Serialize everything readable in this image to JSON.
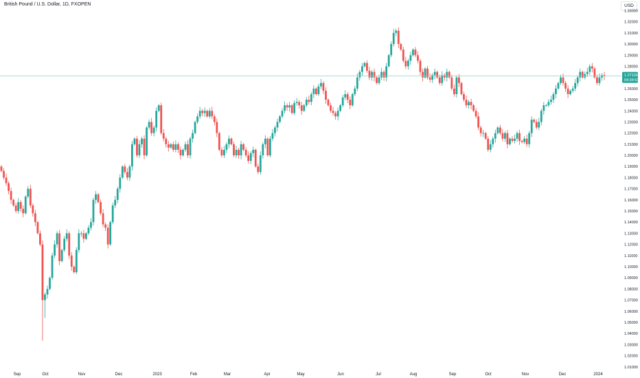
{
  "header": {
    "title": "British Pound / U.S. Dollar, 1D, FXOPEN",
    "currency": "USD"
  },
  "price_tag": {
    "last_price": "1.27126",
    "countdown": "04:34:53"
  },
  "colors": {
    "up": "#26a69a",
    "down": "#ef5350",
    "last_price_line": "#7fd3c9",
    "axis_text": "#131722"
  },
  "chart_data": {
    "type": "candlestick",
    "title": "British Pound / U.S. Dollar, 1D, FXOPEN",
    "ylim": [
      1.0095,
      1.3395
    ],
    "y_ticks": [
      "1.33000",
      "1.32000",
      "1.31000",
      "1.30000",
      "1.29000",
      "1.28000",
      "1.27000",
      "1.26000",
      "1.25000",
      "1.24000",
      "1.23000",
      "1.22000",
      "1.21000",
      "1.20000",
      "1.19000",
      "1.18000",
      "1.17000",
      "1.16000",
      "1.15000",
      "1.14000",
      "1.13000",
      "1.12000",
      "1.11000",
      "1.10000",
      "1.09000",
      "1.08000",
      "1.07000",
      "1.06000",
      "1.05000",
      "1.04000",
      "1.03000",
      "1.02000",
      "1.01000"
    ],
    "x_ticks": [
      "Sep",
      "Oct",
      "Nov",
      "Dec",
      "2023",
      "Feb",
      "Mar",
      "Apr",
      "May",
      "Jun",
      "Jul",
      "Aug",
      "Sep",
      "Oct",
      "Nov",
      "Dec",
      "2024"
    ],
    "grid": false,
    "last_price": 1.27126,
    "closes": [
      1.186,
      1.18,
      1.175,
      1.168,
      1.16,
      1.155,
      1.15,
      1.158,
      1.152,
      1.148,
      1.163,
      1.17,
      1.155,
      1.148,
      1.14,
      1.13,
      1.12,
      1.07,
      1.075,
      1.08,
      1.09,
      1.11,
      1.12,
      1.13,
      1.105,
      1.115,
      1.125,
      1.13,
      1.11,
      1.1,
      1.095,
      1.115,
      1.13,
      1.13,
      1.125,
      1.13,
      1.135,
      1.14,
      1.16,
      1.165,
      1.158,
      1.148,
      1.138,
      1.135,
      1.12,
      1.14,
      1.155,
      1.16,
      1.17,
      1.18,
      1.19,
      1.185,
      1.18,
      1.19,
      1.21,
      1.215,
      1.2,
      1.21,
      1.215,
      1.2,
      1.225,
      1.23,
      1.22,
      1.225,
      1.24,
      1.245,
      1.22,
      1.215,
      1.21,
      1.207,
      1.21,
      1.205,
      1.21,
      1.205,
      1.2,
      1.205,
      1.21,
      1.2,
      1.215,
      1.22,
      1.23,
      1.235,
      1.24,
      1.238,
      1.24,
      1.235,
      1.24,
      1.235,
      1.23,
      1.22,
      1.205,
      1.2,
      1.205,
      1.21,
      1.215,
      1.21,
      1.2,
      1.205,
      1.2,
      1.21,
      1.205,
      1.2,
      1.195,
      1.202,
      1.205,
      1.19,
      1.185,
      1.2,
      1.21,
      1.215,
      1.2,
      1.215,
      1.22,
      1.225,
      1.23,
      1.235,
      1.24,
      1.245,
      1.243,
      1.245,
      1.238,
      1.247,
      1.248,
      1.245,
      1.24,
      1.245,
      1.25,
      1.248,
      1.255,
      1.26,
      1.255,
      1.262,
      1.265,
      1.258,
      1.25,
      1.245,
      1.24,
      1.238,
      1.235,
      1.24,
      1.245,
      1.252,
      1.255,
      1.25,
      1.245,
      1.255,
      1.26,
      1.27,
      1.275,
      1.28,
      1.283,
      1.276,
      1.27,
      1.275,
      1.27,
      1.265,
      1.27,
      1.275,
      1.27,
      1.28,
      1.29,
      1.3,
      1.31,
      1.312,
      1.3,
      1.295,
      1.285,
      1.28,
      1.285,
      1.29,
      1.295,
      1.29,
      1.285,
      1.275,
      1.27,
      1.278,
      1.27,
      1.268,
      1.272,
      1.275,
      1.27,
      1.265,
      1.272,
      1.27,
      1.275,
      1.27,
      1.26,
      1.255,
      1.27,
      1.265,
      1.255,
      1.25,
      1.245,
      1.248,
      1.245,
      1.24,
      1.235,
      1.225,
      1.22,
      1.22,
      1.215,
      1.205,
      1.21,
      1.215,
      1.22,
      1.225,
      1.22,
      1.215,
      1.22,
      1.21,
      1.215,
      1.213,
      1.215,
      1.22,
      1.213,
      1.212,
      1.215,
      1.21,
      1.22,
      1.232,
      1.23,
      1.225,
      1.23,
      1.24,
      1.245,
      1.245,
      1.248,
      1.25,
      1.255,
      1.26,
      1.265,
      1.27,
      1.265,
      1.26,
      1.255,
      1.258,
      1.26,
      1.265,
      1.27,
      1.275,
      1.27,
      1.273,
      1.275,
      1.28,
      1.278,
      1.27,
      1.265,
      1.27,
      1.272,
      1.27126
    ]
  }
}
